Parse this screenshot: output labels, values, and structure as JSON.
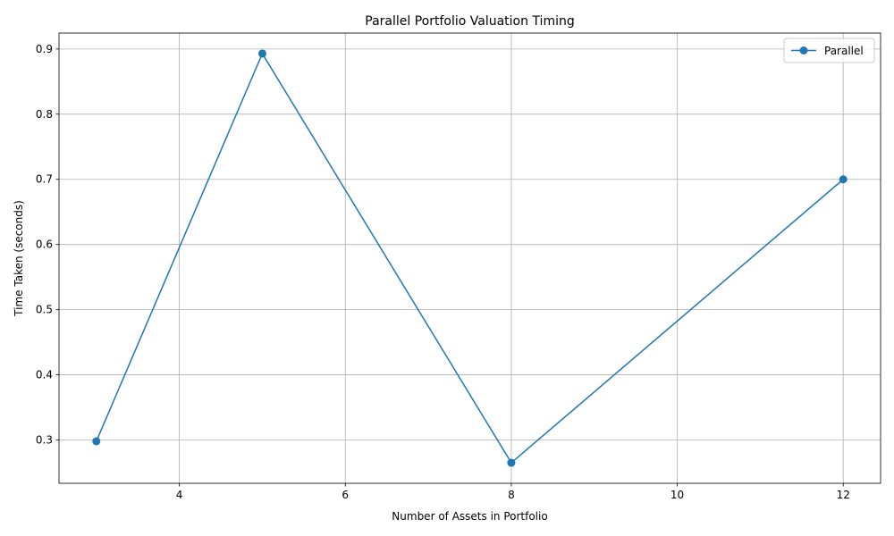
{
  "chart_data": {
    "type": "line",
    "title": "Parallel Portfolio Valuation Timing",
    "xlabel": "Number of Assets in Portfolio",
    "ylabel": "Time Taken (seconds)",
    "xlim": [
      2.55,
      12.45
    ],
    "ylim": [
      0.2335,
      0.9245
    ],
    "xticks": [
      4,
      6,
      8,
      10,
      12
    ],
    "yticks": [
      0.3,
      0.4,
      0.5,
      0.6,
      0.7,
      0.8,
      0.9
    ],
    "xtick_labels": [
      "4",
      "6",
      "8",
      "10",
      "12"
    ],
    "ytick_labels": [
      "0.3",
      "0.4",
      "0.5",
      "0.6",
      "0.7",
      "0.8",
      "0.9"
    ],
    "grid": true,
    "legend_position": "top-right",
    "series": [
      {
        "name": "Parallel",
        "color": "#1f77b4",
        "marker": "circle",
        "x": [
          3,
          5,
          8,
          12
        ],
        "values": [
          0.298,
          0.893,
          0.265,
          0.7
        ]
      }
    ]
  }
}
